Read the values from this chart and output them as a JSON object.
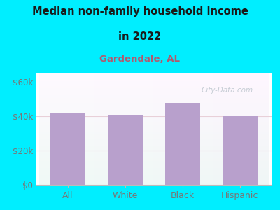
{
  "categories": [
    "All",
    "White",
    "Black",
    "Hispanic"
  ],
  "values": [
    42000,
    41000,
    48000,
    40000
  ],
  "bar_color": "#b8a0cc",
  "title_line1": "Median non-family household income",
  "title_line2": "in 2022",
  "subtitle": "Gardendale, AL",
  "subtitle_color": "#b05a6e",
  "title_color": "#1a1a1a",
  "background_outer": "#00eeff",
  "tick_label_color": "#777777",
  "yticks": [
    0,
    20000,
    40000,
    60000
  ],
  "ytick_labels": [
    "$0",
    "$20k",
    "$40k",
    "$60k"
  ],
  "ylim": [
    0,
    65000
  ],
  "watermark": "City-Data.com",
  "watermark_color": "#c0c8d0",
  "grid_color": "#e8d0d8",
  "bar_gap": 0.38
}
